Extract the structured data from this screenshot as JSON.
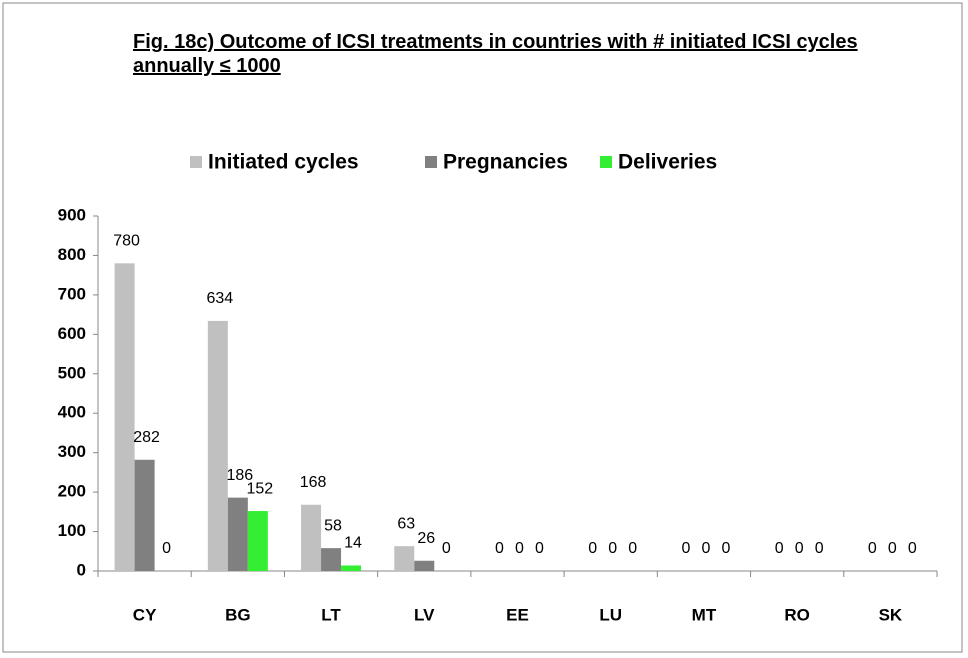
{
  "chart_data": {
    "type": "bar",
    "title": "Fig. 18c) Outcome of ICSI treatments  in countries with # initiated ICSI cycles annually  ≤ 1000",
    "categories": [
      "CY",
      "BG",
      "LT",
      "LV",
      "EE",
      "LU",
      "MT",
      "RO",
      "SK"
    ],
    "series": [
      {
        "name": "Initiated cycles",
        "color": "#c0c0c0",
        "values": [
          780,
          634,
          168,
          63,
          0,
          0,
          0,
          0,
          0
        ]
      },
      {
        "name": "Pregnancies",
        "color": "#808080",
        "values": [
          282,
          186,
          58,
          26,
          0,
          0,
          0,
          0,
          0
        ]
      },
      {
        "name": "Deliveries",
        "color": "#33ee33",
        "values": [
          0,
          152,
          14,
          0,
          0,
          0,
          0,
          0,
          0
        ]
      }
    ],
    "ylim": [
      0,
      900
    ],
    "yticks": [
      0,
      100,
      200,
      300,
      400,
      500,
      600,
      700,
      800,
      900
    ],
    "grid": false,
    "legend": "top"
  }
}
